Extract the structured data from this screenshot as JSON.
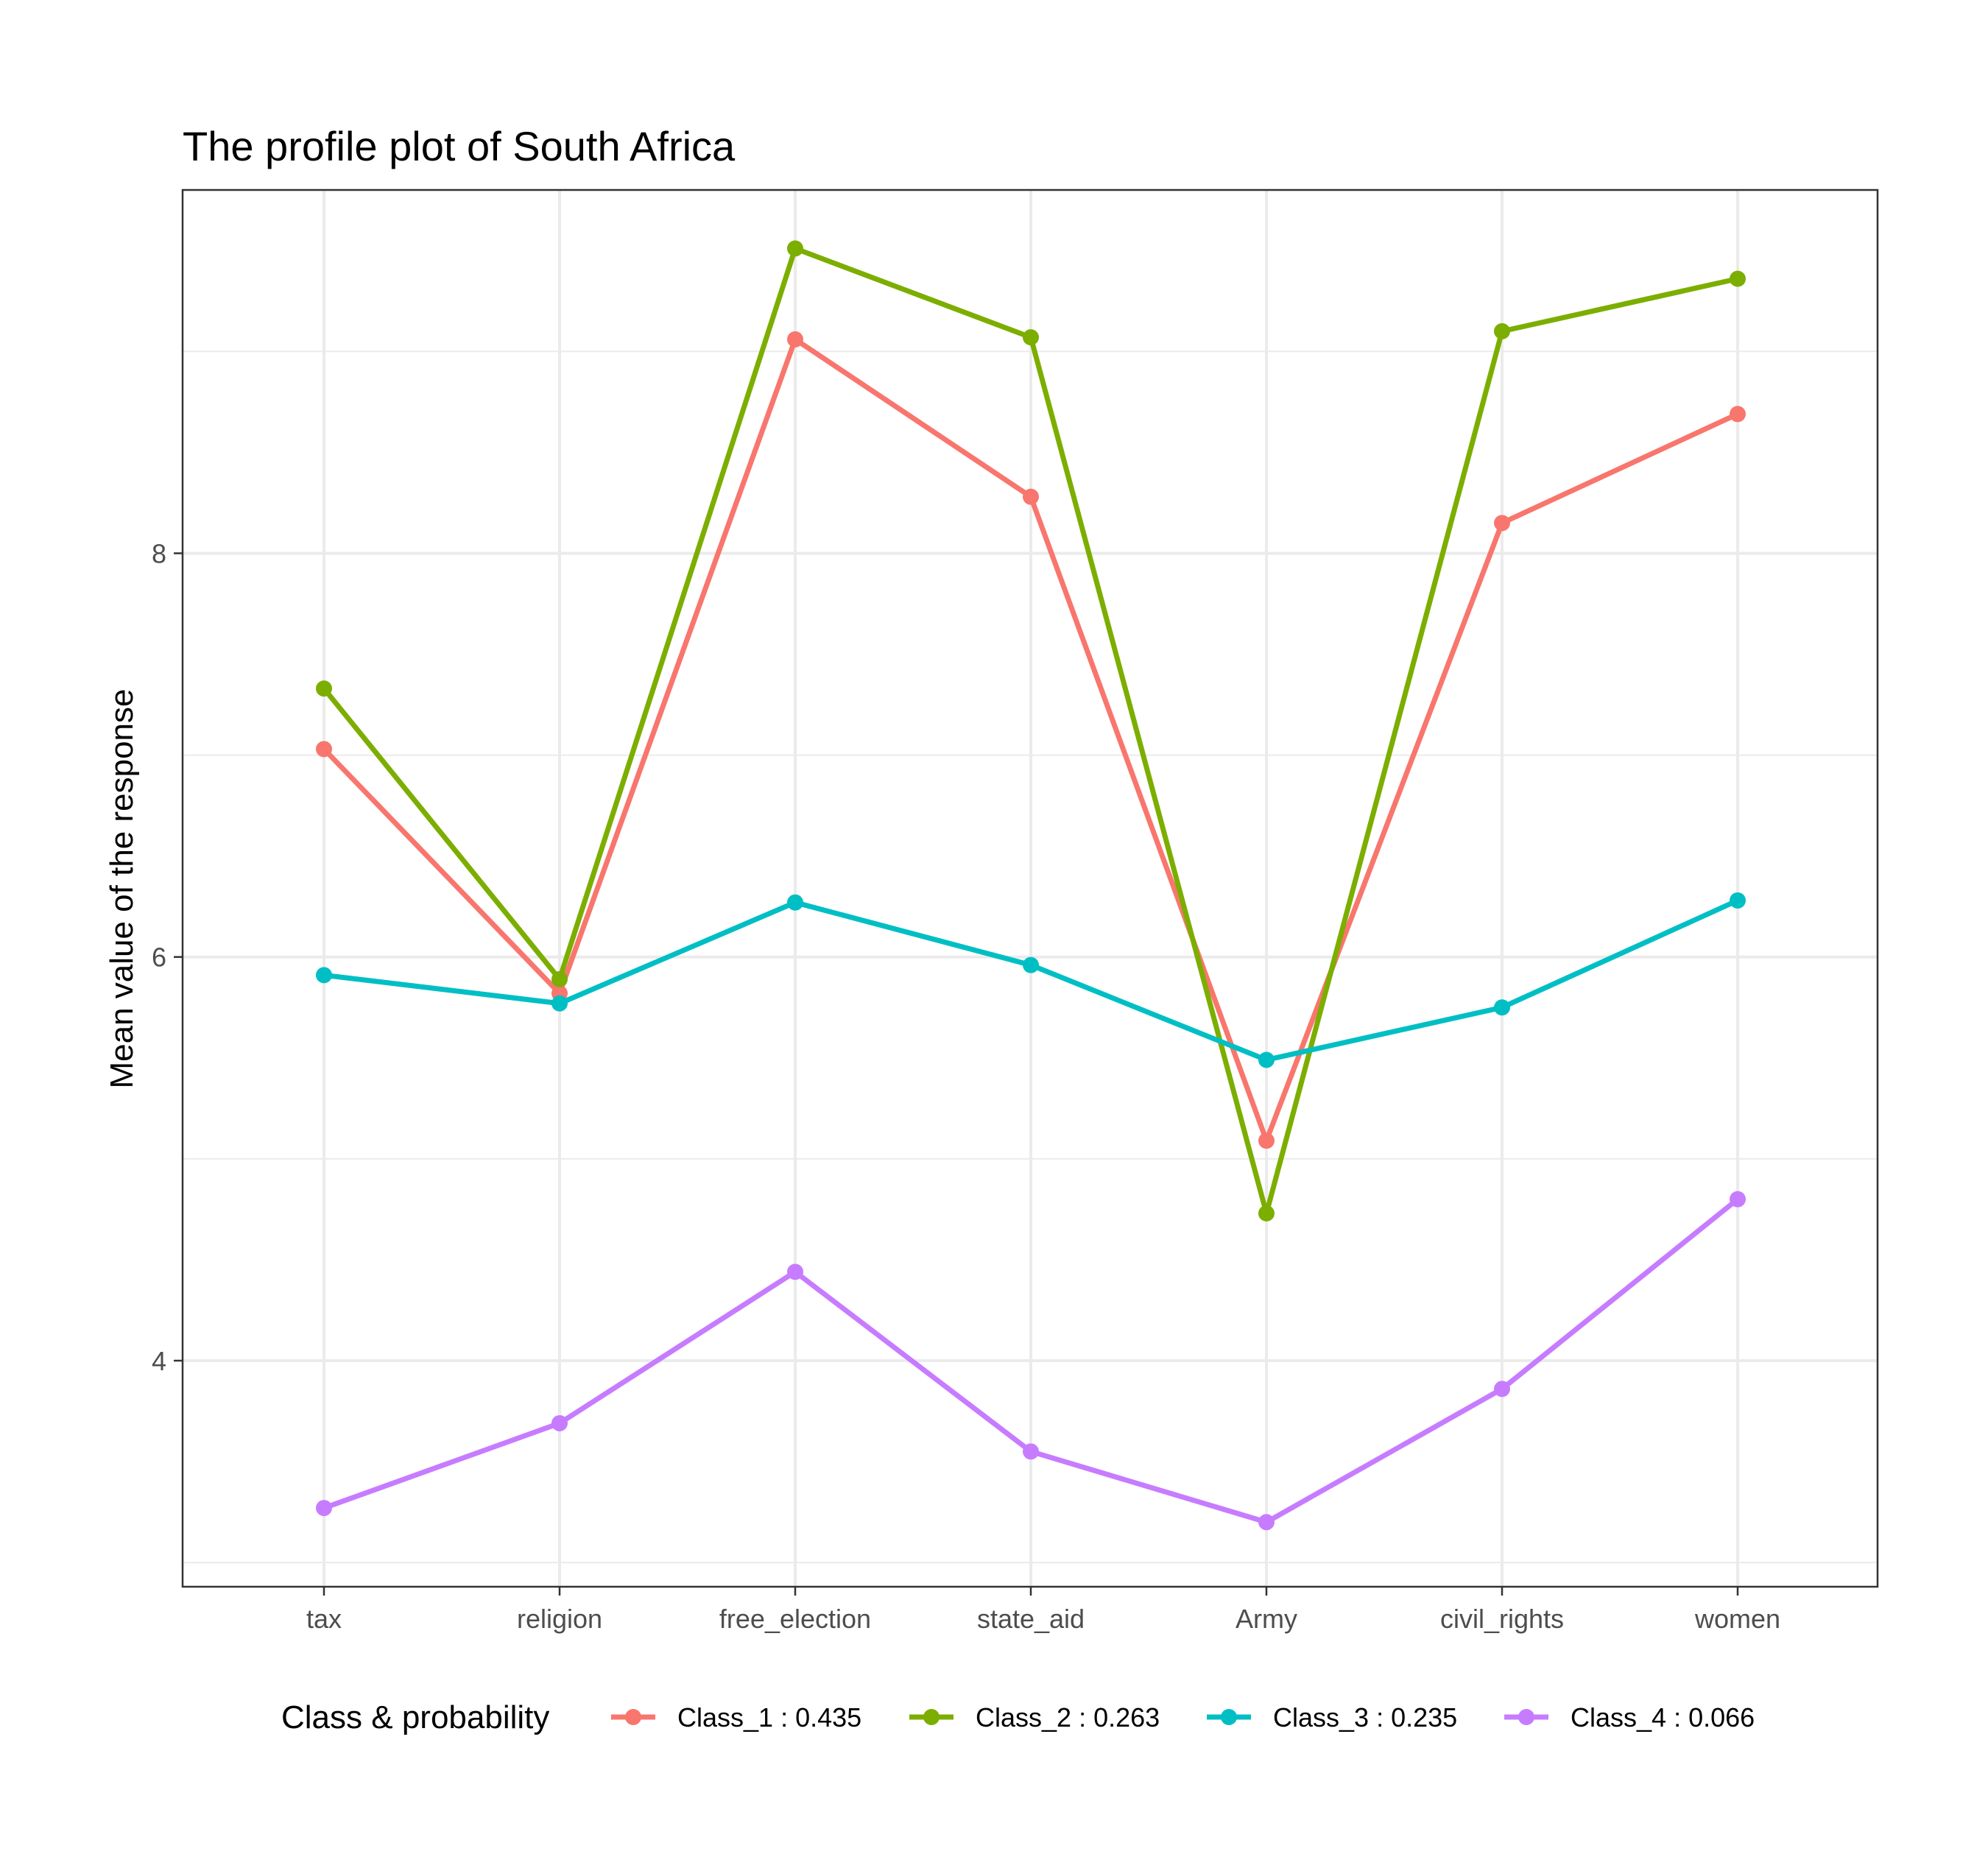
{
  "chart_data": {
    "type": "line",
    "title": "The profile plot of South Africa",
    "xlabel": "",
    "ylabel": "Mean value of the response",
    "categories": [
      "tax",
      "religion",
      "free_election",
      "state_aid",
      "Army",
      "civil_rights",
      "women"
    ],
    "ylim": [
      2.88,
      9.8
    ],
    "yticks": [
      4,
      6,
      8
    ],
    "grid": true,
    "legend": {
      "title": "Class & probability",
      "position": "bottom"
    },
    "series": [
      {
        "name": "Class_1 : 0.435",
        "color": "#F8766D",
        "values": [
          7.03,
          5.82,
          9.06,
          8.28,
          5.09,
          8.15,
          8.69
        ]
      },
      {
        "name": "Class_2 : 0.263",
        "color": "#7CAE00",
        "values": [
          7.33,
          5.89,
          9.51,
          9.07,
          4.73,
          9.1,
          9.36
        ]
      },
      {
        "name": "Class_3 : 0.235",
        "color": "#00BFC4",
        "values": [
          5.91,
          5.77,
          6.27,
          5.96,
          5.49,
          5.75,
          6.28
        ]
      },
      {
        "name": "Class_4 : 0.066",
        "color": "#C77CFF",
        "values": [
          3.27,
          3.69,
          4.44,
          3.55,
          3.2,
          3.86,
          4.8
        ]
      }
    ]
  }
}
